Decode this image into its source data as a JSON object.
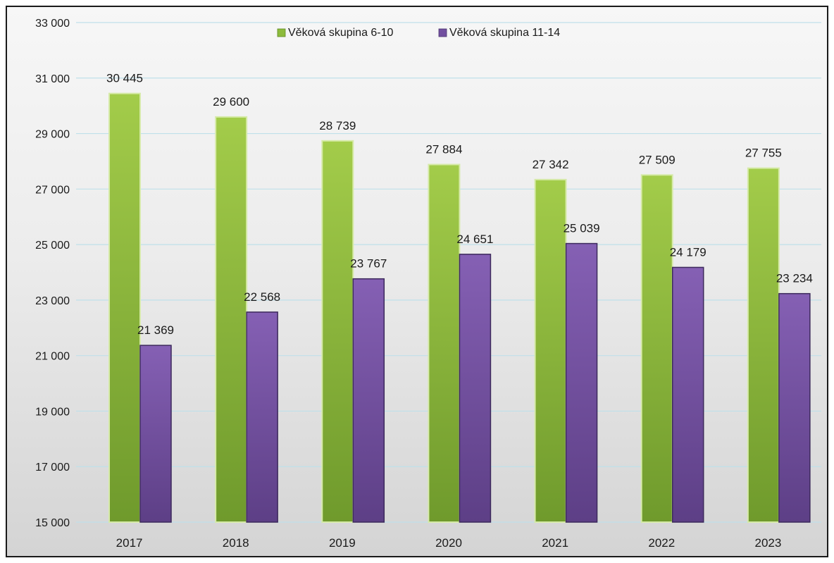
{
  "chart_data": {
    "type": "bar",
    "categories": [
      "2017",
      "2018",
      "2019",
      "2020",
      "2021",
      "2022",
      "2023"
    ],
    "series": [
      {
        "name": "Věková skupina 6-10",
        "color": "#8dbb3c",
        "values": [
          30445,
          29600,
          28739,
          27884,
          27342,
          27509,
          27755
        ],
        "labels": [
          "30 445",
          "29 600",
          "28 739",
          "27 884",
          "27 342",
          "27 509",
          "27 755"
        ]
      },
      {
        "name": "Věková skupina 11-14",
        "color": "#7250a0",
        "values": [
          21369,
          22568,
          23767,
          24651,
          25039,
          24179,
          23234
        ],
        "labels": [
          "21 369",
          "22 568",
          "23 767",
          "24 651",
          "25 039",
          "24 179",
          "23 234"
        ]
      }
    ],
    "yticks": [
      15000,
      17000,
      19000,
      21000,
      23000,
      25000,
      27000,
      29000,
      31000,
      33000
    ],
    "ytick_labels": [
      "15 000",
      "17 000",
      "19 000",
      "21 000",
      "23 000",
      "25 000",
      "27 000",
      "29 000",
      "31 000",
      "33 000"
    ],
    "ylim": [
      15000,
      33000
    ],
    "grid": true,
    "legend_position": "top-center"
  }
}
